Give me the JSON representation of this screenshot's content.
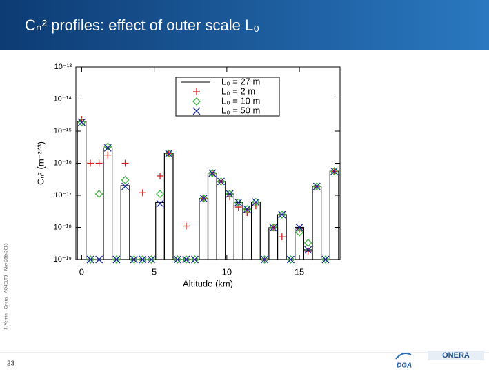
{
  "slide": {
    "title": "Cₙ² profiles: effect of outer scale L₀",
    "side_note": "J. Vernin – Onera – AO4ELT3 – May 28th 2013",
    "page_number": "23",
    "logos": [
      "DGA",
      "ONERA"
    ]
  },
  "chart_data": {
    "type": "step-scatter",
    "x_label": "Altitude (km)",
    "y_label": "Cₙ² (m⁻²ᐟ³)",
    "x": [
      0,
      0.6,
      1.2,
      1.8,
      2.4,
      3,
      3.6,
      4.2,
      4.8,
      5.4,
      6,
      6.6,
      7.2,
      7.8,
      8.4,
      9,
      9.6,
      10.2,
      10.8,
      11.4,
      12,
      12.6,
      13.2,
      13.8,
      14.4,
      15,
      15.6,
      16.2,
      16.8,
      17.4
    ],
    "series": [
      {
        "name": "L₀ = 27 m",
        "color": "#000000",
        "marker": "step",
        "values": [
          2e-15,
          1e-19,
          1e-19,
          3e-16,
          1e-19,
          2e-17,
          1e-19,
          1e-19,
          1e-19,
          6e-18,
          2e-16,
          1e-19,
          1e-19,
          1e-19,
          8e-18,
          5e-17,
          2.7e-17,
          1.1e-17,
          6e-18,
          3.7e-18,
          6.2e-18,
          1e-19,
          9.8e-19,
          2.5e-18,
          1e-19,
          1e-18,
          2e-19,
          1.9e-17,
          1e-19,
          5.6e-17
        ]
      },
      {
        "name": "L₀ = 2 m",
        "color": "#d62020",
        "marker": "plus",
        "values": [
          2.3e-15,
          1e-16,
          1e-16,
          1.8e-16,
          null,
          1e-16,
          null,
          1.2e-17,
          null,
          4e-17,
          2e-16,
          null,
          1.1e-18,
          null,
          8e-18,
          4.9e-17,
          2.7e-17,
          9e-18,
          4.3e-18,
          2.9e-18,
          4.7e-18,
          1e-19,
          9.8e-19,
          5.1e-19,
          null,
          9e-19,
          1.8e-19,
          1.9e-17,
          null,
          5.6e-17
        ]
      },
      {
        "name": "L₀ = 10 m",
        "color": "#3cb83c",
        "marker": "diamond",
        "values": [
          1.9e-15,
          1e-19,
          1.1e-17,
          3.3e-16,
          1e-19,
          3e-17,
          1e-19,
          1e-19,
          1e-19,
          1.1e-17,
          2e-16,
          1e-19,
          1e-19,
          1e-19,
          8e-18,
          4.9e-17,
          2.7e-17,
          1.1e-17,
          6e-18,
          3.7e-18,
          6.2e-18,
          1e-19,
          1e-18,
          2.5e-18,
          1e-19,
          7e-19,
          3.3e-19,
          1.9e-17,
          1e-19,
          5.6e-17
        ]
      },
      {
        "name": "L₀ = 50 m",
        "color": "#1a2a9c",
        "marker": "x",
        "values": [
          1.9e-15,
          1e-19,
          1e-19,
          3e-16,
          1e-19,
          1.9e-17,
          1e-19,
          1e-19,
          1e-19,
          5.5e-18,
          2e-16,
          1e-19,
          1e-19,
          1e-19,
          8e-18,
          4.9e-17,
          2.7e-17,
          1.1e-17,
          6e-18,
          3.7e-18,
          6.2e-18,
          1e-19,
          9.8e-19,
          2.5e-18,
          1e-19,
          1e-18,
          2e-19,
          1.9e-17,
          1e-19,
          5.6e-17
        ]
      }
    ],
    "xlim": [
      -0.4,
      17.8
    ],
    "xticks": [
      0,
      5,
      10,
      15
    ],
    "ylim": [
      1e-19,
      1e-13
    ],
    "log_y": true,
    "yticks": [
      {
        "value": 1e-13,
        "label": "10⁻¹³"
      },
      {
        "value": 1e-14,
        "label": "10⁻¹⁴"
      },
      {
        "value": 1e-15,
        "label": "10⁻¹⁵"
      },
      {
        "value": 1e-16,
        "label": "10⁻¹⁶"
      },
      {
        "value": 1e-17,
        "label": "10⁻¹⁷"
      },
      {
        "value": 1e-18,
        "label": "10⁻¹⁸"
      },
      {
        "value": 1e-19,
        "label": "10⁻¹⁹"
      }
    ],
    "legend": "top-right"
  }
}
